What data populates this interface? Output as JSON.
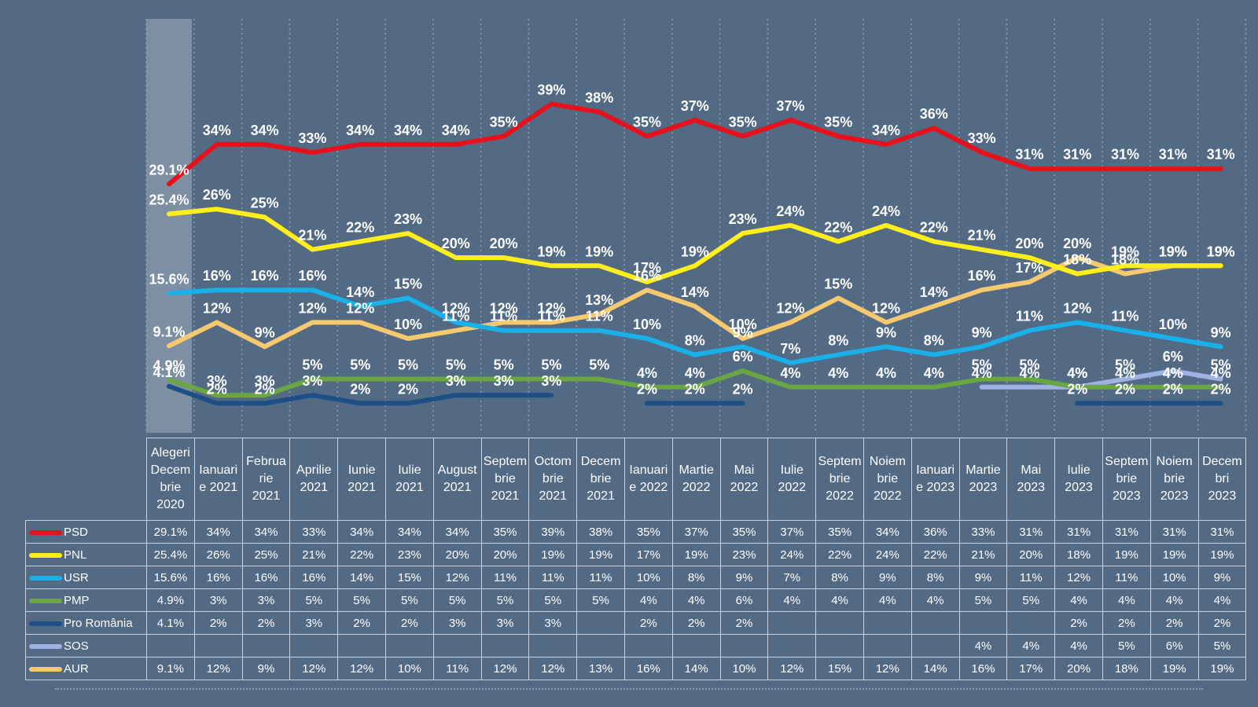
{
  "chart_data": {
    "type": "line",
    "categories": [
      "Alegeri Decembrie 2020",
      "Ianuarie 2021",
      "Februarie 2021",
      "Aprilie 2021",
      "Iunie 2021",
      "Iulie 2021",
      "August 2021",
      "Septembrie 2021",
      "Octombrie 2021",
      "Decembrie 2021",
      "Ianuarie 2022",
      "Martie 2022",
      "Mai 2022",
      "Iulie 2022",
      "Septembrie 2022",
      "Noiembrie 2022",
      "Ianuarie 2023",
      "Martie 2023",
      "Mai 2023",
      "Iulie 2023",
      "Septembrie 2023",
      "Noiembrie 2023",
      "Decembri 2023"
    ],
    "header_lines": [
      [
        "Alegeri",
        "Decem",
        "brie",
        "2020"
      ],
      [
        "Ianuari",
        "e 2021"
      ],
      [
        "Februa",
        "rie",
        "2021"
      ],
      [
        "Aprilie",
        "2021"
      ],
      [
        "Iunie",
        "2021"
      ],
      [
        "Iulie",
        "2021"
      ],
      [
        "August",
        "2021"
      ],
      [
        "Septem",
        "brie",
        "2021"
      ],
      [
        "Octom",
        "brie",
        "2021"
      ],
      [
        "Decem",
        "brie",
        "2021"
      ],
      [
        "Ianuari",
        "e 2022"
      ],
      [
        "Martie",
        "2022"
      ],
      [
        "Mai",
        "2022"
      ],
      [
        "Iulie",
        "2022"
      ],
      [
        "Septem",
        "brie",
        "2022"
      ],
      [
        "Noiem",
        "brie",
        "2022"
      ],
      [
        "Ianuari",
        "e 2023"
      ],
      [
        "Martie",
        "2023"
      ],
      [
        "Mai",
        "2023"
      ],
      [
        "Iulie",
        "2023"
      ],
      [
        "Septem",
        "brie",
        "2023"
      ],
      [
        "Noiem",
        "brie",
        "2023"
      ],
      [
        "Decem",
        "bri",
        "2023"
      ]
    ],
    "series": [
      {
        "name": "PSD",
        "color": "#e8101a",
        "values": [
          29.1,
          34,
          34,
          33,
          34,
          34,
          34,
          35,
          39,
          38,
          35,
          37,
          35,
          37,
          35,
          34,
          36,
          33,
          31,
          31,
          31,
          31,
          31
        ],
        "labels": [
          "29.1%",
          "34%",
          "34%",
          "33%",
          "34%",
          "34%",
          "34%",
          "35%",
          "39%",
          "38%",
          "35%",
          "37%",
          "35%",
          "37%",
          "35%",
          "34%",
          "36%",
          "33%",
          "31%",
          "31%",
          "31%",
          "31%",
          "31%"
        ]
      },
      {
        "name": "PNL",
        "color": "#ffee1c",
        "values": [
          25.4,
          26,
          25,
          21,
          22,
          23,
          20,
          20,
          19,
          19,
          17,
          19,
          23,
          24,
          22,
          24,
          22,
          21,
          20,
          18,
          19,
          19,
          19
        ],
        "labels": [
          "25.4%",
          "26%",
          "25%",
          "21%",
          "22%",
          "23%",
          "20%",
          "20%",
          "19%",
          "19%",
          "17%",
          "19%",
          "23%",
          "24%",
          "22%",
          "24%",
          "22%",
          "21%",
          "20%",
          "18%",
          "19%",
          "19%",
          "19%"
        ]
      },
      {
        "name": "USR",
        "color": "#1ab0ea",
        "values": [
          15.6,
          16,
          16,
          16,
          14,
          15,
          12,
          11,
          11,
          11,
          10,
          8,
          9,
          7,
          8,
          9,
          8,
          9,
          11,
          12,
          11,
          10,
          9
        ],
        "labels": [
          "15.6%",
          "16%",
          "16%",
          "16%",
          "14%",
          "15%",
          "12%",
          "11%",
          "11%",
          "11%",
          "10%",
          "8%",
          "9%",
          "7%",
          "8%",
          "9%",
          "8%",
          "9%",
          "11%",
          "12%",
          "11%",
          "10%",
          "9%"
        ]
      },
      {
        "name": "PMP",
        "color": "#6ba644",
        "values": [
          4.9,
          3,
          3,
          5,
          5,
          5,
          5,
          5,
          5,
          5,
          4,
          4,
          6,
          4,
          4,
          4,
          4,
          5,
          5,
          4,
          4,
          4,
          4
        ],
        "labels": [
          "4.9%",
          "3%",
          "3%",
          "5%",
          "5%",
          "5%",
          "5%",
          "5%",
          "5%",
          "5%",
          "4%",
          "4%",
          "6%",
          "4%",
          "4%",
          "4%",
          "4%",
          "5%",
          "5%",
          "4%",
          "4%",
          "4%",
          "4%"
        ]
      },
      {
        "name": "Pro România",
        "color": "#1d4f86",
        "values": [
          4.1,
          2,
          2,
          3,
          2,
          2,
          3,
          3,
          3,
          null,
          2,
          2,
          2,
          null,
          null,
          null,
          null,
          null,
          null,
          2,
          2,
          2,
          2
        ],
        "labels": [
          "4.1%",
          "2%",
          "2%",
          "3%",
          "2%",
          "2%",
          "3%",
          "3%",
          "3%",
          "",
          "2%",
          "2%",
          "2%",
          "",
          "",
          "",
          "",
          "",
          "",
          "2%",
          "2%",
          "2%",
          "2%"
        ]
      },
      {
        "name": "SOS",
        "color": "#9eb2e4",
        "values": [
          null,
          null,
          null,
          null,
          null,
          null,
          null,
          null,
          null,
          null,
          null,
          null,
          null,
          null,
          null,
          null,
          null,
          4,
          4,
          4,
          5,
          6,
          5
        ],
        "labels": [
          "",
          "",
          "",
          "",
          "",
          "",
          "",
          "",
          "",
          "",
          "",
          "",
          "",
          "",
          "",
          "",
          "",
          "4%",
          "4%",
          "4%",
          "5%",
          "6%",
          "5%"
        ]
      },
      {
        "name": "AUR",
        "color": "#f7c96e",
        "values": [
          9.1,
          12,
          9,
          12,
          12,
          10,
          11,
          12,
          12,
          13,
          16,
          14,
          10,
          12,
          15,
          12,
          14,
          16,
          17,
          20,
          18,
          19,
          19
        ],
        "labels": [
          "9.1%",
          "12%",
          "9%",
          "12%",
          "12%",
          "10%",
          "11%",
          "12%",
          "12%",
          "13%",
          "16%",
          "14%",
          "10%",
          "12%",
          "15%",
          "12%",
          "14%",
          "16%",
          "17%",
          "20%",
          "18%",
          "19%",
          "19%"
        ]
      }
    ],
    "legend": "table-left",
    "grid": true
  }
}
